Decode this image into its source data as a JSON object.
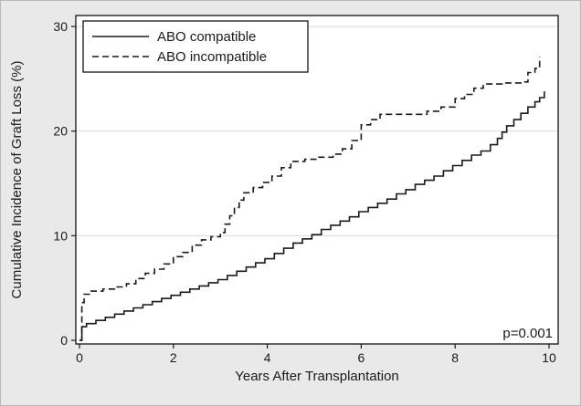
{
  "figure": {
    "background": "#e9e9e9",
    "plot_background": "#ffffff",
    "line_color": "#1a1a1a"
  },
  "chart_data": {
    "type": "line",
    "subtype": "step-cumulative-incidence",
    "title": "",
    "xlabel": "Years After Transplantation",
    "ylabel": "Cumulative Incidence of Graft Loss (%)",
    "xlim": [
      0,
      10
    ],
    "ylim": [
      0,
      30
    ],
    "x_ticks": [
      0,
      2,
      4,
      6,
      8,
      10
    ],
    "y_ticks": [
      0,
      10,
      20,
      30
    ],
    "y_gridlines": [
      10,
      20,
      30
    ],
    "grid": "horizontal-light",
    "legend_position": "top-left-inside",
    "annotation": "p=0.001",
    "series": [
      {
        "name": "ABO compatible",
        "line_style": "solid",
        "points": [
          [
            0,
            0
          ],
          [
            0.05,
            1.3
          ],
          [
            0.15,
            1.6
          ],
          [
            0.35,
            1.9
          ],
          [
            0.55,
            2.2
          ],
          [
            0.75,
            2.5
          ],
          [
            0.95,
            2.8
          ],
          [
            1.15,
            3.1
          ],
          [
            1.35,
            3.4
          ],
          [
            1.55,
            3.7
          ],
          [
            1.75,
            4.0
          ],
          [
            1.95,
            4.3
          ],
          [
            2.15,
            4.6
          ],
          [
            2.35,
            4.9
          ],
          [
            2.55,
            5.2
          ],
          [
            2.75,
            5.5
          ],
          [
            2.95,
            5.8
          ],
          [
            3.15,
            6.2
          ],
          [
            3.35,
            6.6
          ],
          [
            3.55,
            7.0
          ],
          [
            3.75,
            7.4
          ],
          [
            3.95,
            7.8
          ],
          [
            4.15,
            8.3
          ],
          [
            4.35,
            8.8
          ],
          [
            4.55,
            9.3
          ],
          [
            4.75,
            9.7
          ],
          [
            4.95,
            10.1
          ],
          [
            5.15,
            10.6
          ],
          [
            5.35,
            11.0
          ],
          [
            5.55,
            11.4
          ],
          [
            5.75,
            11.8
          ],
          [
            5.95,
            12.3
          ],
          [
            6.15,
            12.7
          ],
          [
            6.35,
            13.1
          ],
          [
            6.55,
            13.5
          ],
          [
            6.75,
            14.0
          ],
          [
            6.95,
            14.4
          ],
          [
            7.15,
            14.9
          ],
          [
            7.35,
            15.3
          ],
          [
            7.55,
            15.7
          ],
          [
            7.75,
            16.2
          ],
          [
            7.95,
            16.7
          ],
          [
            8.15,
            17.2
          ],
          [
            8.35,
            17.7
          ],
          [
            8.55,
            18.1
          ],
          [
            8.75,
            18.7
          ],
          [
            8.9,
            19.3
          ],
          [
            9.0,
            19.9
          ],
          [
            9.1,
            20.5
          ],
          [
            9.25,
            21.1
          ],
          [
            9.4,
            21.7
          ],
          [
            9.55,
            22.3
          ],
          [
            9.7,
            22.8
          ],
          [
            9.8,
            23.2
          ],
          [
            9.9,
            23.8
          ]
        ]
      },
      {
        "name": "ABO incompatible",
        "line_style": "dashed",
        "points": [
          [
            0,
            0
          ],
          [
            0.05,
            3.6
          ],
          [
            0.1,
            4.4
          ],
          [
            0.25,
            4.7
          ],
          [
            0.5,
            4.9
          ],
          [
            0.75,
            5.1
          ],
          [
            1.0,
            5.4
          ],
          [
            1.2,
            5.9
          ],
          [
            1.4,
            6.4
          ],
          [
            1.6,
            6.8
          ],
          [
            1.8,
            7.3
          ],
          [
            2.0,
            8.0
          ],
          [
            2.2,
            8.4
          ],
          [
            2.4,
            9.1
          ],
          [
            2.6,
            9.6
          ],
          [
            2.8,
            9.9
          ],
          [
            3.0,
            10.3
          ],
          [
            3.1,
            11.1
          ],
          [
            3.2,
            11.9
          ],
          [
            3.3,
            12.7
          ],
          [
            3.4,
            13.4
          ],
          [
            3.5,
            14.1
          ],
          [
            3.7,
            14.6
          ],
          [
            3.9,
            15.1
          ],
          [
            4.1,
            15.7
          ],
          [
            4.3,
            16.5
          ],
          [
            4.5,
            17.1
          ],
          [
            4.8,
            17.3
          ],
          [
            5.1,
            17.5
          ],
          [
            5.4,
            17.8
          ],
          [
            5.6,
            18.3
          ],
          [
            5.8,
            19.1
          ],
          [
            6.0,
            20.6
          ],
          [
            6.2,
            21.1
          ],
          [
            6.4,
            21.6
          ],
          [
            7.0,
            21.6
          ],
          [
            7.4,
            21.9
          ],
          [
            7.7,
            22.3
          ],
          [
            8.0,
            23.1
          ],
          [
            8.2,
            23.5
          ],
          [
            8.4,
            24.1
          ],
          [
            8.6,
            24.5
          ],
          [
            9.0,
            24.6
          ],
          [
            9.4,
            24.7
          ],
          [
            9.55,
            25.6
          ],
          [
            9.7,
            26.0
          ],
          [
            9.8,
            27.1
          ]
        ]
      }
    ]
  }
}
